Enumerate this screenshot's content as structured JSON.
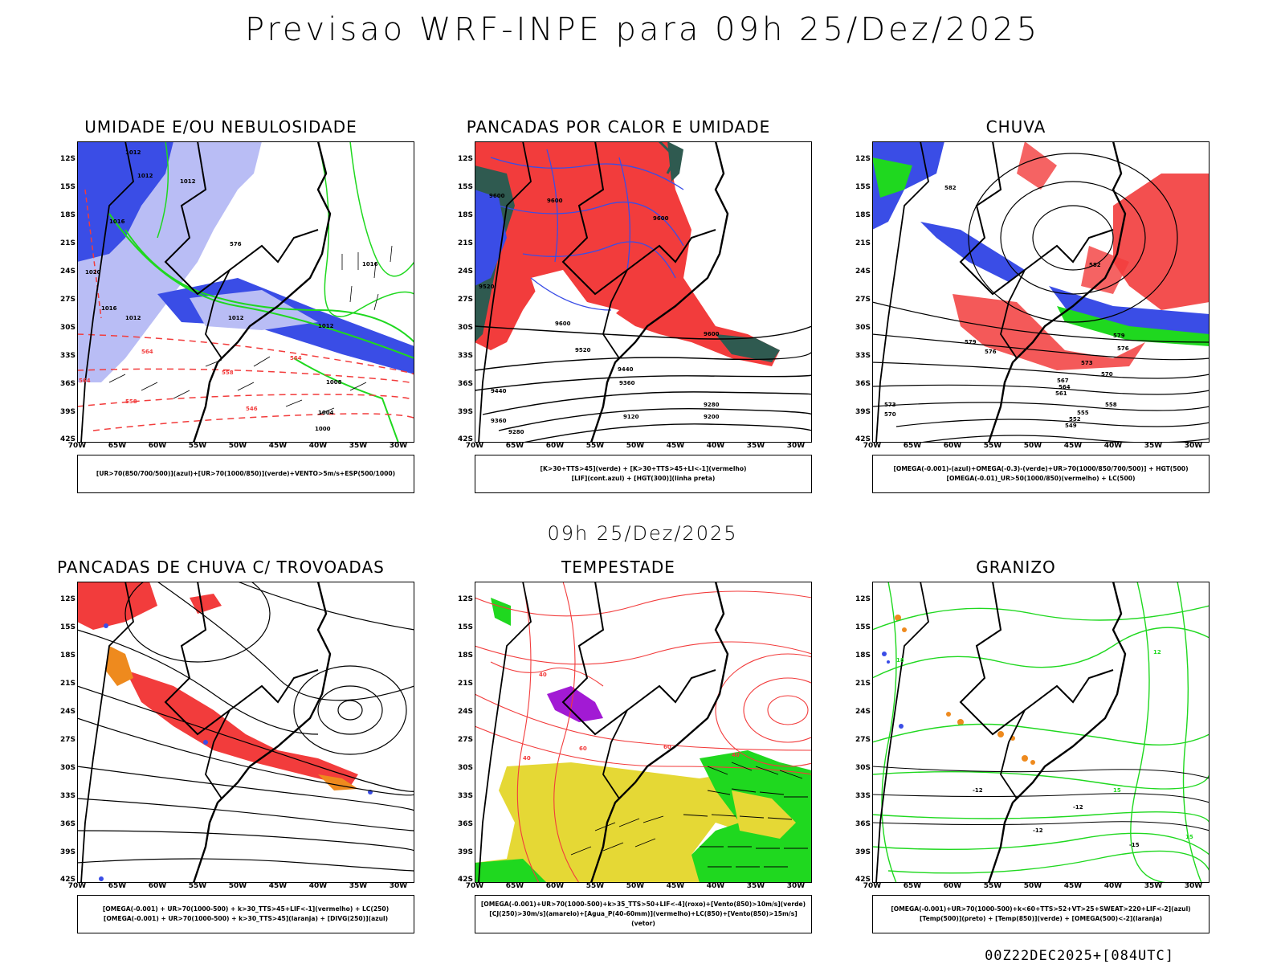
{
  "title": "Previsao WRF-INPE  para 09h 25/Dez/2025",
  "subtitle": "09h 25/Dez/2025",
  "footer": "00Z22DEC2025+[084UTC]",
  "axes": {
    "lat_labels": [
      "12S",
      "15S",
      "18S",
      "21S",
      "24S",
      "27S",
      "30S",
      "33S",
      "36S",
      "39S",
      "42S"
    ],
    "lon_labels": [
      "70W",
      "65W",
      "60W",
      "55W",
      "50W",
      "45W",
      "40W",
      "35W",
      "30W"
    ]
  },
  "colors": {
    "blue": "#3a4de6",
    "light_blue": "#b9bdf5",
    "green": "#1fd81f",
    "red": "#f23c3c",
    "dark_teal": "#2f5a50",
    "yellow": "#e5d835",
    "orange": "#ee8a1e",
    "purple": "#a21ad4",
    "black": "#000000"
  },
  "panels": [
    {
      "title": "UMIDADE E/OU NEBULOSIDADE",
      "legend": [
        "[UR>70(850/700/500)](azul)+[UR>70(1000/850)](verde)+VENTO>5m/s+ESP(500/1000)"
      ],
      "contour_labels": [
        "1012",
        "1012",
        "1012",
        "1016",
        "1020",
        "1016",
        "1012",
        "1008",
        "1004",
        "1000",
        "576",
        "570",
        "564",
        "558",
        "552",
        "546"
      ]
    },
    {
      "title": "PANCADAS POR CALOR E UMIDADE",
      "legend": [
        "[K>30+TTS>45](verde) + [K>30+TTS>45+LI<-1](vermelho)",
        "[LIF](cont.azul) + [HGT(300)](linha preta)"
      ],
      "contour_labels": [
        "9600",
        "9600",
        "9600",
        "9520",
        "9520",
        "9440",
        "9360",
        "9280",
        "9200",
        "9120",
        "9280",
        "9520",
        "9440"
      ]
    },
    {
      "title": "CHUVA",
      "legend": [
        "[OMEGA(-0.001)-(azul)+OMEGA(-0.3)-(verde)+UR>70(1000/850/700/500)] + HGT(500)",
        "[OMEGA(-0.01)_UR>50(1000/850)(vermelho) + LC(500)"
      ],
      "contour_labels": [
        "582",
        "582",
        "579",
        "576",
        "573",
        "570",
        "567",
        "564",
        "561",
        "558",
        "555",
        "552",
        "549",
        "573",
        "570"
      ]
    },
    {
      "title": "PANCADAS DE CHUVA C/ TROVOADAS",
      "legend": [
        "[OMEGA(-0.001) + UR>70(1000-500) + k>30_TTS>45+LIF<-1](vermelho) + LC(250)",
        "[OMEGA(-0.001) + UR>70(1000-500) + k>30_TTS>45](laranja) + [DIVG(250)](azul)"
      ],
      "contour_labels": []
    },
    {
      "title": "TEMPESTADE",
      "legend": [
        "[OMEGA(-0.001)+UR>70(1000-500)+k>35_TTS>50+LIF<-4](roxo)+[Vento(850)>10m/s](verde)",
        "[CJ(250)>30m/s](amarelo)+[Agua_P(40-60mm)](vermelho)+LC(850)+[Vento(850)>15m/s](vetor)"
      ],
      "contour_labels": [
        "40",
        "40",
        "60",
        "60",
        "40"
      ]
    },
    {
      "title": "GRANIZO",
      "legend": [
        "[OMEGA(-0.001)+UR>70(1000-500)+k<60+TTS>52+VT>25+SWEAT>220+LIF<-2](azul)",
        "[Temp(500)](preto) + [Temp(850)](verde) + [OMEGA(500)<-2](laranja)"
      ],
      "contour_labels": [
        "-12",
        "-12",
        "-12",
        "-15",
        "18",
        "15",
        "15",
        "12"
      ]
    }
  ]
}
